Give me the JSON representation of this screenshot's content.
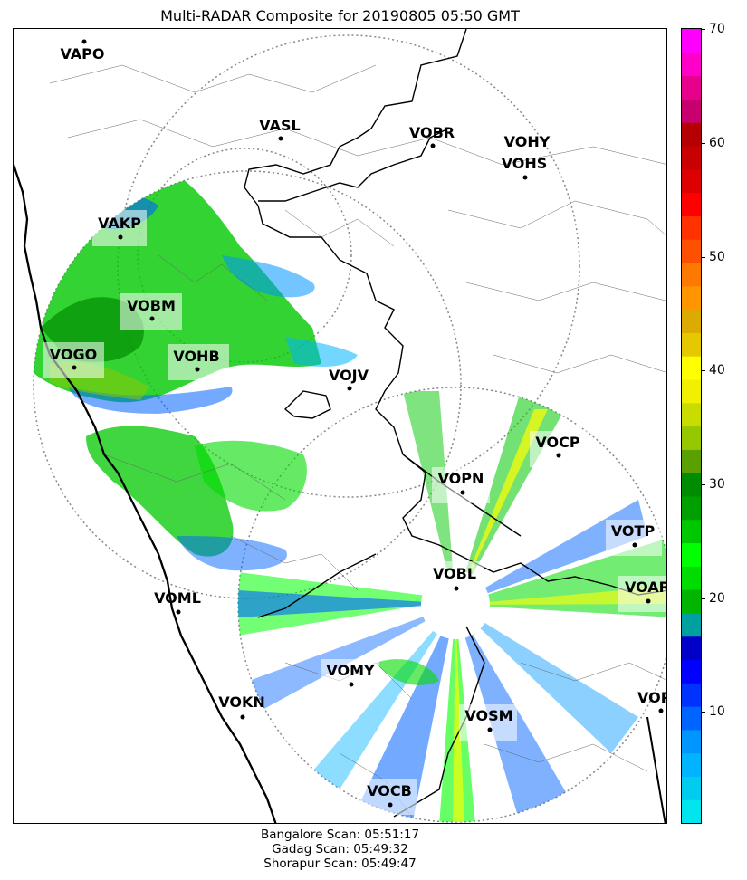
{
  "title": "Multi-RADAR Composite for 20190805 05:50 GMT",
  "scan_times": [
    "Bangalore Scan: 05:51:17",
    "Gadag Scan: 05:49:32",
    "Shorapur Scan: 05:49:47"
  ],
  "colorbar": {
    "min": 0,
    "max": 70,
    "ticks": [
      "10",
      "20",
      "30",
      "40",
      "50",
      "60",
      "70"
    ],
    "colors": [
      "#00e5ee",
      "#00cdee",
      "#00b4ff",
      "#0096ff",
      "#0064ff",
      "#0032ff",
      "#0000ff",
      "#0000c8",
      "#00a0a0",
      "#00b400",
      "#00dc00",
      "#00ff00",
      "#00c800",
      "#00a000",
      "#008c00",
      "#5aa000",
      "#96c800",
      "#c8dc00",
      "#f0f000",
      "#ffff00",
      "#e6c800",
      "#dcaa00",
      "#ff9600",
      "#ff7800",
      "#ff5000",
      "#ff3200",
      "#ff0000",
      "#dc0000",
      "#c80000",
      "#b40000",
      "#c8006e",
      "#e6008c",
      "#ff00c8",
      "#ff00ff"
    ]
  },
  "stations": [
    {
      "code": "VAPO"
    },
    {
      "code": "VASL"
    },
    {
      "code": "VOBR"
    },
    {
      "code": "VOHY"
    },
    {
      "code": "VOHS"
    },
    {
      "code": "VAKP"
    },
    {
      "code": "VOBM"
    },
    {
      "code": "VOGO"
    },
    {
      "code": "VOHB"
    },
    {
      "code": "VOJV"
    },
    {
      "code": "VOCP"
    },
    {
      "code": "VOPN"
    },
    {
      "code": "VOTP"
    },
    {
      "code": "VOBL"
    },
    {
      "code": "VOAR"
    },
    {
      "code": "VOML"
    },
    {
      "code": "VOMY"
    },
    {
      "code": "VOKN"
    },
    {
      "code": "VOPC"
    },
    {
      "code": "VOSM"
    },
    {
      "code": "VOCB"
    }
  ]
}
